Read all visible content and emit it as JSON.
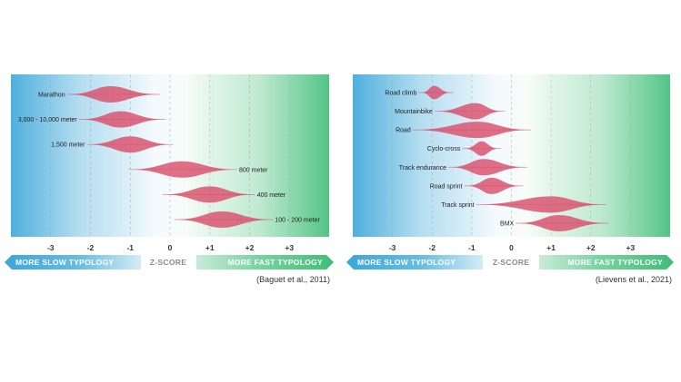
{
  "chart_data": [
    {
      "type": "violin",
      "axis_label": "Z-SCORE",
      "xlim": [
        -4,
        4
      ],
      "ticks": [
        "-3",
        "-2",
        "-1",
        "0",
        "+1",
        "+2",
        "+3"
      ],
      "tick_values": [
        -3,
        -2,
        -1,
        0,
        1,
        2,
        3
      ],
      "rows": [
        {
          "label": "Marathon",
          "center": -1.5,
          "min": -2.5,
          "max": -0.35,
          "label_side": "left"
        },
        {
          "label": "3,000 - 10,000 meter",
          "center": -1.25,
          "min": -2.2,
          "max": -0.2,
          "label_side": "left"
        },
        {
          "label": "1,500 meter",
          "center": -1.0,
          "min": -2.0,
          "max": 0.0,
          "label_side": "left"
        },
        {
          "label": "800 meter",
          "center": 0.3,
          "min": -0.95,
          "max": 1.6,
          "label_side": "right"
        },
        {
          "label": "400 meter",
          "center": 1.0,
          "min": -0.1,
          "max": 2.05,
          "label_side": "right"
        },
        {
          "label": "100 - 200 meter",
          "center": 1.3,
          "min": 0.2,
          "max": 2.5,
          "label_side": "right"
        }
      ],
      "banner_slow": "MORE SLOW TYPOLOGY",
      "banner_fast": "MORE FAST TYPOLOGY",
      "citation": "(Baguet et al., 2011)"
    },
    {
      "type": "violin",
      "axis_label": "Z-SCORE",
      "xlim": [
        -4,
        4
      ],
      "ticks": [
        "-3",
        "-2",
        "-1",
        "0",
        "+1",
        "+2",
        "+3"
      ],
      "tick_values": [
        -3,
        -2,
        -1,
        0,
        1,
        2,
        3
      ],
      "rows": [
        {
          "label": "Road climb",
          "center": -1.95,
          "min": -2.25,
          "max": -1.55,
          "label_side": "left"
        },
        {
          "label": "Mountainbike",
          "center": -0.9,
          "min": -1.85,
          "max": -0.25,
          "label_side": "left"
        },
        {
          "label": "Road",
          "center": -0.85,
          "min": -2.4,
          "max": 0.4,
          "label_side": "left"
        },
        {
          "label": "Cyclo-cross",
          "center": -0.75,
          "min": -1.15,
          "max": -0.35,
          "label_side": "left"
        },
        {
          "label": "Track endurance",
          "center": -0.7,
          "min": -1.5,
          "max": 0.3,
          "label_side": "left"
        },
        {
          "label": "Road sprint",
          "center": -0.5,
          "min": -1.1,
          "max": 0.2,
          "label_side": "left"
        },
        {
          "label": "Track sprint",
          "center": 1.0,
          "min": -0.8,
          "max": 2.3,
          "label_side": "left"
        },
        {
          "label": "BMX",
          "center": 1.2,
          "min": 0.2,
          "max": 2.35,
          "label_side": "left"
        }
      ],
      "banner_slow": "MORE SLOW TYPOLOGY",
      "banner_fast": "MORE FAST TYPOLOGY",
      "citation": "(Lievens et al., 2021)"
    }
  ],
  "colors": {
    "slow": "#3aa6d8",
    "fast": "#3fbd78",
    "violin": "#d94f6b",
    "zlabel": "#8a8a8a"
  }
}
